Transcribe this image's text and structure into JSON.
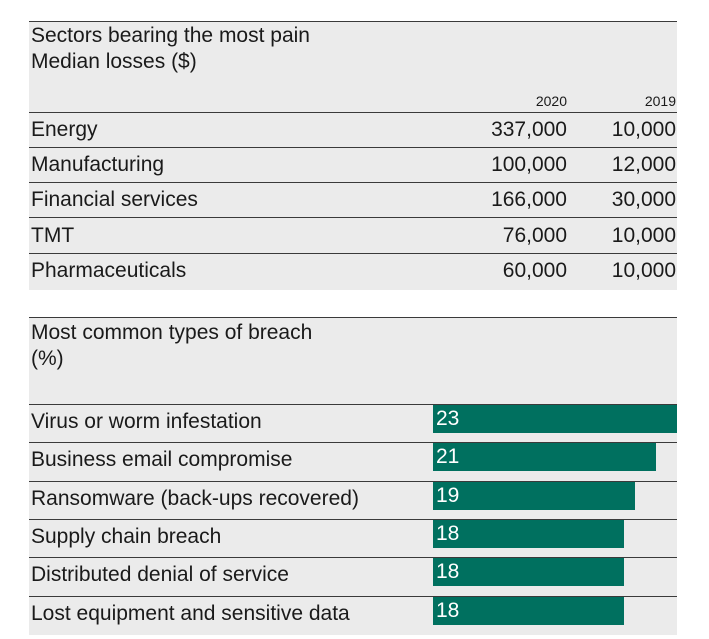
{
  "table": {
    "title": "Sectors bearing the most pain",
    "subtitle": "Median losses ($)",
    "columns": [
      "2020",
      "2019"
    ],
    "rows": [
      {
        "sector": "Energy",
        "v2020": "337,000",
        "v2019": "10,000"
      },
      {
        "sector": "Manufacturing",
        "v2020": "100,000",
        "v2019": "12,000"
      },
      {
        "sector": "Financial services",
        "v2020": "166,000",
        "v2019": "30,000"
      },
      {
        "sector": "TMT",
        "v2020": "76,000",
        "v2019": "10,000"
      },
      {
        "sector": "Pharmaceuticals",
        "v2020": "60,000",
        "v2019": "10,000"
      }
    ]
  },
  "chart_data": {
    "type": "bar",
    "orientation": "horizontal",
    "title": "Most common types of breach",
    "subtitle": "(%)",
    "categories": [
      "Virus or worm infestation",
      "Business email compromise",
      "Ransomware (back-ups recovered)",
      "Supply chain breach",
      "Distributed denial of service",
      "Lost equipment and sensitive data"
    ],
    "values": [
      23,
      21,
      19,
      18,
      18,
      18
    ],
    "xlim": [
      0,
      23
    ],
    "bar_color": "#00705f",
    "grid": false
  }
}
